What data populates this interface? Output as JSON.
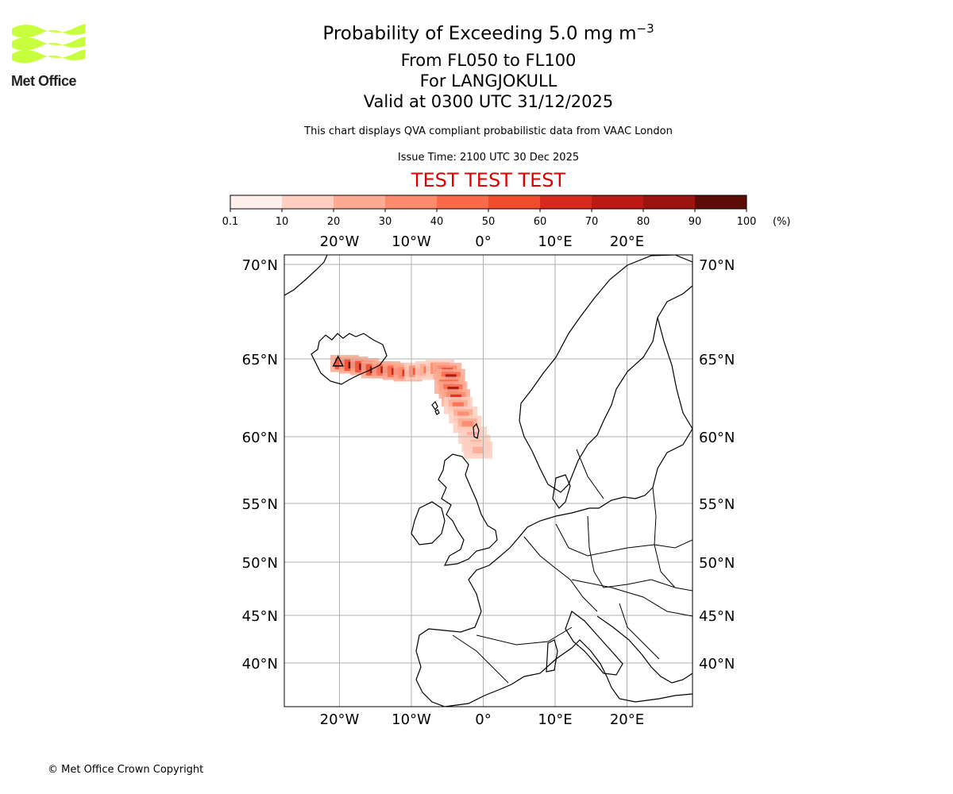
{
  "logo": {
    "text": "Met Office",
    "colors": {
      "waves": "#c8ff3c",
      "text": "#222222"
    }
  },
  "title": {
    "main_prefix": "Probability of Exceeding 5.0 mg m",
    "main_exponent": "−3",
    "line2": "From FL050 to FL100",
    "line3": "For LANGJOKULL",
    "line4": "Valid at 0300 UTC 31/12/2025"
  },
  "description": "This chart displays QVA compliant probabilistic data from VAAC London",
  "issue_time": "Issue Time: 2100 UTC 30 Dec 2025",
  "test_banner": "TEST TEST TEST",
  "copyright": "© Met Office Crown Copyright",
  "colorbar": {
    "ticks": [
      "0.1",
      "10",
      "20",
      "30",
      "40",
      "50",
      "60",
      "70",
      "80",
      "90",
      "100"
    ],
    "unit": "(%)",
    "colors": [
      "#fff0eb",
      "#fecfc0",
      "#fcaa92",
      "#fc8a6c",
      "#fa6a4a",
      "#f24a2d",
      "#d9291f",
      "#bc1914",
      "#9c1310",
      "#7a0f0b",
      "#5c0c06"
    ]
  },
  "map": {
    "lon_labels": [
      "20°W",
      "10°W",
      "0°",
      "10°E",
      "20°E"
    ],
    "lat_labels": [
      "70°N",
      "65°N",
      "60°N",
      "55°N",
      "50°N",
      "45°N",
      "40°N"
    ],
    "lon_values": [
      -20,
      -10,
      0,
      10,
      20
    ],
    "lat_values": [
      70,
      65,
      60,
      55,
      50,
      45,
      40
    ],
    "source": "LANGJOKULL",
    "plume_probabilities": [
      {
        "lon": -19.3,
        "lat": 64.7,
        "p": 95
      },
      {
        "lon": -18.0,
        "lat": 64.6,
        "p": 92
      },
      {
        "lon": -16.5,
        "lat": 64.5,
        "p": 85
      },
      {
        "lon": -15.0,
        "lat": 64.3,
        "p": 82
      },
      {
        "lon": -13.5,
        "lat": 64.3,
        "p": 78
      },
      {
        "lon": -12.0,
        "lat": 64.2,
        "p": 62
      },
      {
        "lon": -10.5,
        "lat": 64.1,
        "p": 55
      },
      {
        "lon": -9.0,
        "lat": 64.2,
        "p": 45
      },
      {
        "lon": -7.5,
        "lat": 64.3,
        "p": 40
      },
      {
        "lon": -6.0,
        "lat": 64.4,
        "p": 50
      },
      {
        "lon": -5.0,
        "lat": 64.2,
        "p": 55
      },
      {
        "lon": -4.5,
        "lat": 63.8,
        "p": 72
      },
      {
        "lon": -4.8,
        "lat": 63.3,
        "p": 70
      },
      {
        "lon": -4.2,
        "lat": 63.0,
        "p": 74
      },
      {
        "lon": -3.8,
        "lat": 62.5,
        "p": 55
      },
      {
        "lon": -3.5,
        "lat": 62.0,
        "p": 40
      },
      {
        "lon": -2.8,
        "lat": 61.4,
        "p": 28
      },
      {
        "lon": -2.2,
        "lat": 60.8,
        "p": 22
      },
      {
        "lon": -1.5,
        "lat": 60.1,
        "p": 18
      },
      {
        "lon": -1.0,
        "lat": 59.5,
        "p": 15
      },
      {
        "lon": -0.7,
        "lat": 59.0,
        "p": 12
      }
    ]
  }
}
